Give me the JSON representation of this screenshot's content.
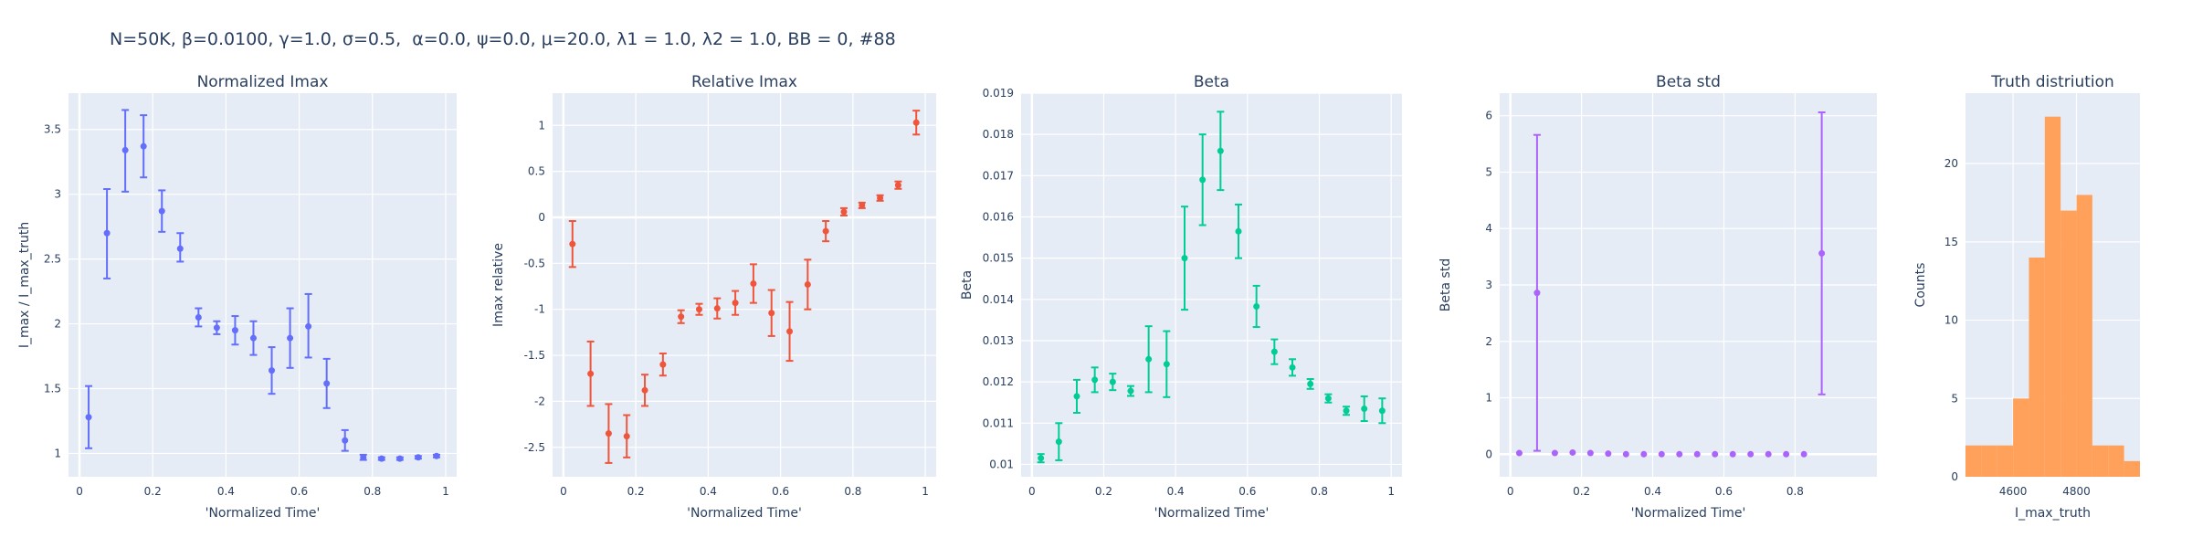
{
  "figure": {
    "title": "N=50K, β=0.0100, γ=1.0, σ=0.5,  α=0.0, ψ=0.0, μ=20.0, λ1 = 1.0, λ2 = 1.0, BB = 0, #88"
  },
  "chart_data": [
    {
      "type": "scatter",
      "title": "Normalized Imax",
      "xlabel": "'Normalized Time'",
      "ylabel": "I_max / I_max_truth",
      "color": "#636efa",
      "xlim": [
        -0.03,
        1.03
      ],
      "ylim": [
        0.82,
        3.78
      ],
      "xticks": [
        0,
        0.2,
        0.4,
        0.6,
        0.8,
        1
      ],
      "xticklabels": [
        "0",
        "0.2",
        "0.4",
        "0.6",
        "0.8",
        "1"
      ],
      "yticks": [
        1,
        1.5,
        2,
        2.5,
        3,
        3.5
      ],
      "yticklabels": [
        "1",
        "1.5",
        "2",
        "2.5",
        "3",
        "3.5"
      ],
      "x": [
        0.025,
        0.075,
        0.125,
        0.175,
        0.225,
        0.275,
        0.325,
        0.375,
        0.425,
        0.475,
        0.525,
        0.575,
        0.625,
        0.675,
        0.725,
        0.775,
        0.825,
        0.875,
        0.925,
        0.975
      ],
      "y": [
        1.28,
        2.7,
        3.34,
        3.37,
        2.87,
        2.58,
        2.05,
        1.97,
        1.95,
        1.89,
        1.64,
        1.89,
        1.98,
        1.54,
        1.1,
        0.97,
        0.96,
        0.96,
        0.97,
        0.98
      ],
      "err_minus": [
        0.24,
        0.35,
        0.32,
        0.24,
        0.16,
        0.1,
        0.07,
        0.05,
        0.11,
        0.13,
        0.18,
        0.23,
        0.24,
        0.19,
        0.08,
        0.02,
        0.01,
        0.01,
        0.01,
        0.01
      ],
      "err_plus": [
        0.24,
        0.34,
        0.31,
        0.24,
        0.16,
        0.12,
        0.07,
        0.05,
        0.11,
        0.13,
        0.18,
        0.23,
        0.25,
        0.19,
        0.08,
        0.02,
        0.01,
        0.01,
        0.01,
        0.01
      ]
    },
    {
      "type": "scatter",
      "title": "Relative Imax",
      "xlabel": "'Normalized Time'",
      "ylabel": "Imax relative",
      "color": "#ef553b",
      "xlim": [
        -0.03,
        1.03
      ],
      "ylim": [
        -2.82,
        1.35
      ],
      "xticks": [
        0,
        0.2,
        0.4,
        0.6,
        0.8,
        1
      ],
      "xticklabels": [
        "0",
        "0.2",
        "0.4",
        "0.6",
        "0.8",
        "1"
      ],
      "yticks": [
        -2.5,
        -2,
        -1.5,
        -1,
        -0.5,
        0,
        0.5,
        1
      ],
      "yticklabels": [
        "-2.5",
        "-2",
        "-1.5",
        "-1",
        "-0.5",
        "0",
        "0.5",
        "1"
      ],
      "x": [
        0.025,
        0.075,
        0.125,
        0.175,
        0.225,
        0.275,
        0.325,
        0.375,
        0.425,
        0.475,
        0.525,
        0.575,
        0.625,
        0.675,
        0.725,
        0.775,
        0.825,
        0.875,
        0.925,
        0.975
      ],
      "y": [
        -0.29,
        -1.7,
        -2.35,
        -2.38,
        -1.88,
        -1.6,
        -1.08,
        -1.0,
        -0.99,
        -0.93,
        -0.72,
        -1.04,
        -1.24,
        -0.73,
        -0.15,
        0.06,
        0.13,
        0.21,
        0.35,
        1.03
      ],
      "err_minus": [
        0.25,
        0.35,
        0.32,
        0.23,
        0.17,
        0.12,
        0.07,
        0.06,
        0.11,
        0.13,
        0.21,
        0.25,
        0.32,
        0.27,
        0.11,
        0.04,
        0.03,
        0.03,
        0.04,
        0.13
      ],
      "err_plus": [
        0.25,
        0.35,
        0.32,
        0.23,
        0.17,
        0.12,
        0.07,
        0.06,
        0.11,
        0.13,
        0.21,
        0.25,
        0.32,
        0.27,
        0.11,
        0.04,
        0.03,
        0.03,
        0.04,
        0.13
      ]
    },
    {
      "type": "scatter",
      "title": "Beta",
      "xlabel": "'Normalized Time'",
      "ylabel": "Beta",
      "color": "#00cc96",
      "xlim": [
        -0.03,
        1.03
      ],
      "ylim": [
        0.0097,
        0.019
      ],
      "xticks": [
        0,
        0.2,
        0.4,
        0.6,
        0.8,
        1
      ],
      "xticklabels": [
        "0",
        "0.2",
        "0.4",
        "0.6",
        "0.8",
        "1"
      ],
      "yticks": [
        0.01,
        0.011,
        0.012,
        0.013,
        0.014,
        0.015,
        0.016,
        0.017,
        0.018,
        0.019
      ],
      "yticklabels": [
        "0.01",
        "0.011",
        "0.012",
        "0.013",
        "0.014",
        "0.015",
        "0.016",
        "0.017",
        "0.018",
        "0.019"
      ],
      "x": [
        0.025,
        0.075,
        0.125,
        0.175,
        0.225,
        0.275,
        0.325,
        0.375,
        0.425,
        0.475,
        0.525,
        0.575,
        0.625,
        0.675,
        0.725,
        0.775,
        0.825,
        0.875,
        0.925,
        0.975
      ],
      "y": [
        0.01015,
        0.01055,
        0.01165,
        0.01205,
        0.012,
        0.01178,
        0.01255,
        0.01243,
        0.015,
        0.0169,
        0.0176,
        0.01565,
        0.01383,
        0.01273,
        0.01235,
        0.01195,
        0.0116,
        0.0113,
        0.01135,
        0.0113
      ],
      "err_minus": [
        0.0001,
        0.00045,
        0.0004,
        0.0003,
        0.0002,
        0.00012,
        0.0008,
        0.0008,
        0.00125,
        0.0011,
        0.00095,
        0.00065,
        0.0005,
        0.0003,
        0.0002,
        0.00012,
        0.0001,
        0.0001,
        0.0003,
        0.0003
      ],
      "err_plus": [
        0.0001,
        0.00045,
        0.0004,
        0.0003,
        0.0002,
        0.00012,
        0.0008,
        0.0008,
        0.00125,
        0.0011,
        0.00095,
        0.00065,
        0.0005,
        0.0003,
        0.0002,
        0.00012,
        0.0001,
        0.0001,
        0.0003,
        0.0003
      ]
    },
    {
      "type": "scatter",
      "title": "Beta std",
      "xlabel": "'Normalized Time'",
      "ylabel": "Beta std",
      "color": "#ab63fa",
      "xlim": [
        -0.03,
        1.03
      ],
      "ylim": [
        -0.4,
        6.4
      ],
      "xticks": [
        0,
        0.2,
        0.4,
        0.6,
        0.8
      ],
      "xticklabels": [
        "0",
        "0.2",
        "0.4",
        "0.6",
        "0.8"
      ],
      "yticks": [
        0,
        1,
        2,
        3,
        4,
        5,
        6
      ],
      "yticklabels": [
        "0",
        "1",
        "2",
        "3",
        "4",
        "5",
        "6"
      ],
      "x": [
        0.025,
        0.075,
        0.125,
        0.175,
        0.225,
        0.275,
        0.325,
        0.375,
        0.425,
        0.475,
        0.525,
        0.575,
        0.625,
        0.675,
        0.725,
        0.775,
        0.825,
        0.875
      ],
      "y": [
        0.02,
        2.86,
        0.02,
        0.03,
        0.02,
        0.01,
        0.0,
        0.0,
        0.0,
        0.0,
        0.0,
        0.0,
        0.0,
        0.0,
        0.0,
        0.0,
        0.0,
        3.56
      ],
      "err_minus": [
        0.0,
        2.8,
        0.0,
        0.0,
        0.0,
        0.0,
        0.0,
        0.0,
        0.0,
        0.0,
        0.0,
        0.0,
        0.0,
        0.0,
        0.0,
        0.0,
        0.0,
        2.5
      ],
      "err_plus": [
        0.0,
        2.8,
        0.0,
        0.0,
        0.0,
        0.0,
        0.0,
        0.0,
        0.0,
        0.0,
        0.0,
        0.0,
        0.0,
        0.0,
        0.0,
        0.0,
        0.0,
        2.5
      ]
    },
    {
      "type": "bar",
      "title": "Truth distriution",
      "xlabel": "I_max_truth",
      "ylabel": "Counts",
      "color": "#ffa15a",
      "bin_edges": [
        4450,
        4500,
        4550,
        4600,
        4650,
        4700,
        4750,
        4800,
        4850,
        4900,
        4950
      ],
      "values": [
        2,
        2,
        2,
        5,
        14,
        23,
        17,
        18,
        2,
        2,
        1
      ],
      "xlim": [
        4450,
        5000
      ],
      "ylim": [
        0,
        24.5
      ],
      "xticks": [
        4600,
        4800
      ],
      "xticklabels": [
        "4600",
        "4800"
      ],
      "yticks": [
        0,
        5,
        10,
        15,
        20
      ],
      "yticklabels": [
        "0",
        "5",
        "10",
        "15",
        "20"
      ]
    }
  ]
}
